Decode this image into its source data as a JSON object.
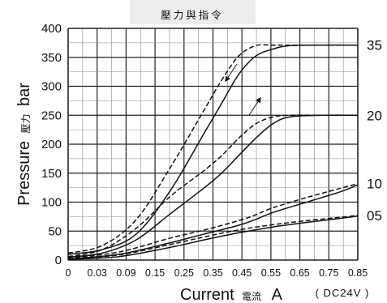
{
  "chart_data": {
    "type": "line",
    "title": "壓力與指令",
    "xlabel": "Current",
    "xlabel_cn": "電流",
    "xlabel_unit": "A",
    "xnote": "( DC24V )",
    "ylabel": "Pressure",
    "ylabel_cn": "壓力",
    "ylabel_unit": "bar",
    "xlim": [
      0,
      0.85
    ],
    "ylim": [
      0,
      400
    ],
    "x_ticks": [
      "0",
      "0.03",
      "0.09",
      "0.15",
      "0.25",
      "0.35",
      "0.45",
      "0.55",
      "0.65",
      "0.75",
      "0.85"
    ],
    "y_ticks": [
      0,
      50,
      100,
      150,
      200,
      250,
      300,
      350,
      400
    ],
    "grid": true,
    "right_labels": [
      {
        "text": "35",
        "y": 371
      },
      {
        "text": "20",
        "y": 250
      },
      {
        "text": "10",
        "y": 132
      },
      {
        "text": "05",
        "y": 77
      }
    ],
    "series": [
      {
        "style": "solid",
        "x": [
          0,
          0.1,
          0.2,
          0.3,
          0.4,
          0.45,
          0.5,
          0.55,
          0.6,
          0.65,
          0.75,
          0.85
        ],
        "y": [
          10,
          18,
          45,
          120,
          220,
          270,
          320,
          352,
          364,
          370,
          371,
          371
        ]
      },
      {
        "style": "dashed",
        "x": [
          0,
          0.1,
          0.2,
          0.3,
          0.4,
          0.45,
          0.5,
          0.55,
          0.6,
          0.65,
          0.75,
          0.85
        ],
        "y": [
          12,
          25,
          70,
          160,
          260,
          310,
          352,
          370,
          371,
          371,
          371,
          371
        ]
      },
      {
        "style": "solid",
        "x": [
          0,
          0.1,
          0.2,
          0.3,
          0.4,
          0.45,
          0.5,
          0.55,
          0.6,
          0.65,
          0.75,
          0.85
        ],
        "y": [
          5,
          12,
          35,
          80,
          125,
          150,
          180,
          210,
          235,
          247,
          250,
          250
        ]
      },
      {
        "style": "dashed",
        "x": [
          0,
          0.1,
          0.2,
          0.3,
          0.4,
          0.45,
          0.5,
          0.55,
          0.6,
          0.65,
          0.75,
          0.85
        ],
        "y": [
          6,
          18,
          55,
          110,
          155,
          180,
          210,
          235,
          247,
          250,
          250,
          250
        ]
      },
      {
        "style": "solid",
        "x": [
          0,
          0.15,
          0.3,
          0.4,
          0.5,
          0.55,
          0.6,
          0.7,
          0.8,
          0.85
        ],
        "y": [
          2,
          10,
          30,
          45,
          60,
          70,
          82,
          100,
          118,
          130
        ]
      },
      {
        "style": "dashed",
        "x": [
          0,
          0.15,
          0.3,
          0.4,
          0.5,
          0.55,
          0.6,
          0.7,
          0.8,
          0.85
        ],
        "y": [
          3,
          14,
          38,
          52,
          68,
          78,
          90,
          108,
          124,
          132
        ]
      },
      {
        "style": "solid",
        "x": [
          0,
          0.15,
          0.3,
          0.4,
          0.5,
          0.6,
          0.7,
          0.8,
          0.85
        ],
        "y": [
          1,
          6,
          22,
          35,
          47,
          57,
          65,
          72,
          76
        ]
      },
      {
        "style": "dashed",
        "x": [
          0,
          0.15,
          0.3,
          0.4,
          0.5,
          0.6,
          0.7,
          0.8,
          0.85
        ],
        "y": [
          2,
          9,
          27,
          40,
          52,
          61,
          68,
          74,
          77
        ]
      }
    ]
  }
}
